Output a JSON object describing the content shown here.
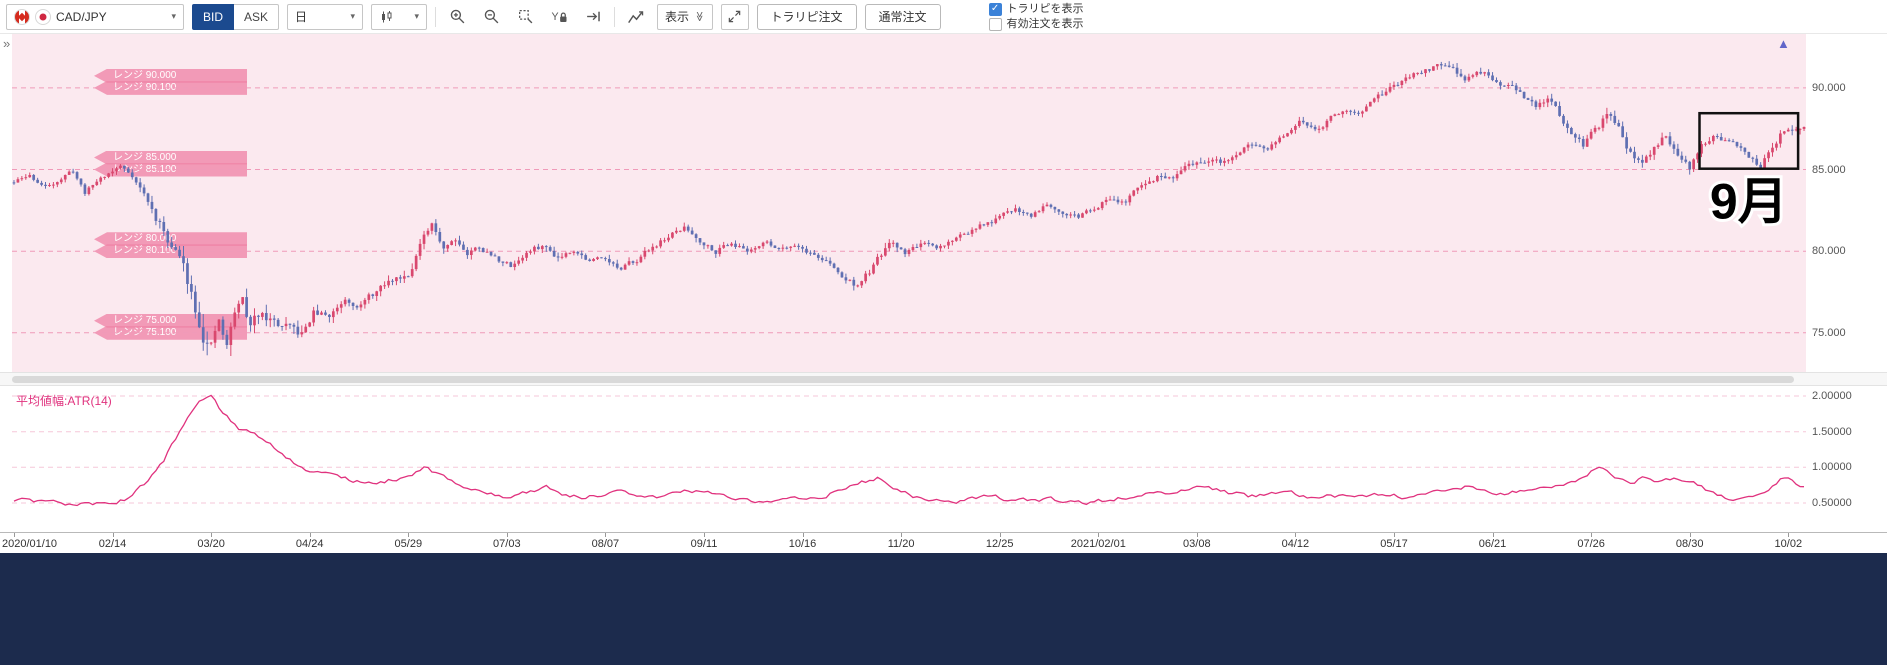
{
  "icons": {
    "chevron_down": "▾",
    "double_chevron": "≫",
    "check": "✓"
  },
  "toolbar": {
    "pair_label": "CAD/JPY",
    "bid_label": "BID",
    "ask_label": "ASK",
    "timeframe_label": "日",
    "display_label": "表示",
    "toraripi_order_label": "トラリピ注文",
    "normal_order_label": "通常注文",
    "show_toraripi_label": "トラリピを表示",
    "show_toraripi_checked": true,
    "show_active_orders_label": "有効注文を表示",
    "show_active_orders_checked": false
  },
  "chart": {
    "collapse_glyph": "»",
    "latest_marker_glyph": "▲",
    "price_axis": [
      {
        "label": "90.000",
        "value": 90
      },
      {
        "label": "85.000",
        "value": 85
      },
      {
        "label": "80.000",
        "value": 80
      },
      {
        "label": "75.000",
        "value": 75
      }
    ],
    "range_tags": [
      {
        "labels": [
          "レンジ 90.000",
          "レンジ 90.100"
        ],
        "price": 90
      },
      {
        "labels": [
          "レンジ 85.000",
          "レンジ 85.100"
        ],
        "price": 85
      },
      {
        "labels": [
          "レンジ 80.000",
          "レンジ 80.100"
        ],
        "price": 80
      },
      {
        "labels": [
          "レンジ 75.000",
          "レンジ 75.100"
        ],
        "price": 75
      }
    ],
    "annotation": {
      "label": "9月",
      "start_index": 428,
      "end_index": 452,
      "price_top": 88.45,
      "price_bottom": 85.05
    }
  },
  "indicator": {
    "label": "平均値幅:ATR(14)",
    "axis": [
      {
        "label": "2.00000",
        "value": 2.0
      },
      {
        "label": "1.50000",
        "value": 1.5
      },
      {
        "label": "1.00000",
        "value": 1.0
      },
      {
        "label": "0.50000",
        "value": 0.5
      }
    ]
  },
  "x_axis": {
    "labels": [
      {
        "text": "2020/01/10",
        "index": 0
      },
      {
        "text": "02/14",
        "index": 25
      },
      {
        "text": "03/20",
        "index": 50
      },
      {
        "text": "04/24",
        "index": 75
      },
      {
        "text": "05/29",
        "index": 100
      },
      {
        "text": "07/03",
        "index": 125
      },
      {
        "text": "08/07",
        "index": 150
      },
      {
        "text": "09/11",
        "index": 175
      },
      {
        "text": "10/16",
        "index": 200
      },
      {
        "text": "11/20",
        "index": 225
      },
      {
        "text": "12/25",
        "index": 250
      },
      {
        "text": "2021/02/01",
        "index": 275
      },
      {
        "text": "03/08",
        "index": 300
      },
      {
        "text": "04/12",
        "index": 325
      },
      {
        "text": "05/17",
        "index": 350
      },
      {
        "text": "06/21",
        "index": 375
      },
      {
        "text": "07/26",
        "index": 400
      },
      {
        "text": "08/30",
        "index": 425
      },
      {
        "text": "10/02",
        "index": 450
      }
    ]
  },
  "chart_data": {
    "type": "candlestick",
    "symbol": "CAD/JPY",
    "timeframe": "daily",
    "indicator": "ATR(14)",
    "num_candles": 455,
    "seed": 11,
    "price_view": [
      72.6,
      93.3
    ],
    "price_gridlines": [
      90,
      85,
      80,
      75
    ],
    "atr_gridlines": [
      2.0,
      1.5,
      1.0,
      0.5
    ],
    "price_anchors": [
      [
        0,
        84.2
      ],
      [
        4,
        84.6
      ],
      [
        8,
        83.9
      ],
      [
        12,
        84.5
      ],
      [
        15,
        84.9
      ],
      [
        18,
        83.6
      ],
      [
        22,
        84.5
      ],
      [
        27,
        85.2
      ],
      [
        30,
        84.7
      ],
      [
        33,
        83.5
      ],
      [
        36,
        82.0
      ],
      [
        39,
        80.8
      ],
      [
        42,
        79.6
      ],
      [
        45,
        77.6
      ],
      [
        48,
        75.2
      ],
      [
        50,
        74.0
      ],
      [
        52,
        75.6
      ],
      [
        54,
        74.0
      ],
      [
        56,
        76.3
      ],
      [
        58,
        77.0
      ],
      [
        60,
        75.3
      ],
      [
        63,
        76.5
      ],
      [
        66,
        75.7
      ],
      [
        70,
        75.1
      ],
      [
        73,
        74.8
      ],
      [
        76,
        76.2
      ],
      [
        80,
        76.0
      ],
      [
        84,
        77.2
      ],
      [
        88,
        76.8
      ],
      [
        92,
        77.5
      ],
      [
        96,
        78.2
      ],
      [
        100,
        78.7
      ],
      [
        103,
        80.4
      ],
      [
        106,
        81.4
      ],
      [
        109,
        80.3
      ],
      [
        112,
        80.9
      ],
      [
        115,
        79.9
      ],
      [
        118,
        80.3
      ],
      [
        122,
        79.6
      ],
      [
        126,
        79.1
      ],
      [
        130,
        79.9
      ],
      [
        134,
        80.3
      ],
      [
        138,
        79.7
      ],
      [
        142,
        80.2
      ],
      [
        146,
        79.4
      ],
      [
        150,
        79.7
      ],
      [
        154,
        78.8
      ],
      [
        158,
        79.5
      ],
      [
        162,
        80.3
      ],
      [
        166,
        80.9
      ],
      [
        170,
        81.4
      ],
      [
        174,
        80.7
      ],
      [
        178,
        80.1
      ],
      [
        182,
        80.6
      ],
      [
        186,
        80.0
      ],
      [
        190,
        80.6
      ],
      [
        194,
        80.2
      ],
      [
        198,
        80.5
      ],
      [
        202,
        79.9
      ],
      [
        206,
        79.4
      ],
      [
        210,
        78.4
      ],
      [
        214,
        77.9
      ],
      [
        218,
        79.0
      ],
      [
        222,
        80.4
      ],
      [
        226,
        79.9
      ],
      [
        230,
        80.5
      ],
      [
        234,
        80.0
      ],
      [
        238,
        80.7
      ],
      [
        242,
        81.2
      ],
      [
        246,
        81.6
      ],
      [
        250,
        82.0
      ],
      [
        254,
        82.6
      ],
      [
        258,
        82.2
      ],
      [
        262,
        83.0
      ],
      [
        266,
        82.5
      ],
      [
        270,
        82.1
      ],
      [
        274,
        82.7
      ],
      [
        278,
        83.3
      ],
      [
        282,
        83.1
      ],
      [
        286,
        83.9
      ],
      [
        290,
        84.6
      ],
      [
        294,
        84.3
      ],
      [
        298,
        85.1
      ],
      [
        302,
        85.6
      ],
      [
        306,
        85.3
      ],
      [
        310,
        86.0
      ],
      [
        314,
        86.5
      ],
      [
        318,
        86.2
      ],
      [
        322,
        87.0
      ],
      [
        326,
        87.8
      ],
      [
        330,
        87.5
      ],
      [
        334,
        88.2
      ],
      [
        338,
        88.8
      ],
      [
        342,
        88.5
      ],
      [
        346,
        89.3
      ],
      [
        350,
        90.1
      ],
      [
        354,
        90.6
      ],
      [
        358,
        91.1
      ],
      [
        362,
        91.5
      ],
      [
        365,
        91.0
      ],
      [
        368,
        90.6
      ],
      [
        371,
        91.1
      ],
      [
        374,
        90.7
      ],
      [
        377,
        89.9
      ],
      [
        380,
        90.3
      ],
      [
        383,
        89.5
      ],
      [
        386,
        88.7
      ],
      [
        389,
        89.2
      ],
      [
        392,
        88.3
      ],
      [
        395,
        87.3
      ],
      [
        398,
        86.5
      ],
      [
        401,
        87.3
      ],
      [
        404,
        88.2
      ],
      [
        407,
        87.5
      ],
      [
        410,
        86.0
      ],
      [
        413,
        85.3
      ],
      [
        416,
        86.4
      ],
      [
        419,
        87.2
      ],
      [
        422,
        86.0
      ],
      [
        425,
        85.0
      ],
      [
        428,
        86.6
      ],
      [
        431,
        87.0
      ],
      [
        434,
        86.8
      ],
      [
        437,
        86.4
      ],
      [
        440,
        85.7
      ],
      [
        443,
        85.2
      ],
      [
        446,
        86.4
      ],
      [
        449,
        87.4
      ],
      [
        452,
        87.6
      ],
      [
        454,
        87.5
      ]
    ],
    "atr_anchors": [
      [
        0,
        0.55
      ],
      [
        10,
        0.5
      ],
      [
        20,
        0.48
      ],
      [
        28,
        0.55
      ],
      [
        33,
        0.75
      ],
      [
        38,
        1.1
      ],
      [
        43,
        1.6
      ],
      [
        47,
        1.92
      ],
      [
        50,
        1.97
      ],
      [
        53,
        1.75
      ],
      [
        57,
        1.55
      ],
      [
        61,
        1.45
      ],
      [
        65,
        1.35
      ],
      [
        70,
        1.1
      ],
      [
        75,
        0.95
      ],
      [
        80,
        0.88
      ],
      [
        85,
        0.82
      ],
      [
        90,
        0.78
      ],
      [
        95,
        0.82
      ],
      [
        100,
        0.85
      ],
      [
        104,
        0.98
      ],
      [
        108,
        0.9
      ],
      [
        112,
        0.78
      ],
      [
        116,
        0.7
      ],
      [
        120,
        0.62
      ],
      [
        125,
        0.58
      ],
      [
        130,
        0.66
      ],
      [
        135,
        0.72
      ],
      [
        140,
        0.62
      ],
      [
        145,
        0.57
      ],
      [
        150,
        0.62
      ],
      [
        155,
        0.66
      ],
      [
        160,
        0.58
      ],
      [
        165,
        0.6
      ],
      [
        170,
        0.65
      ],
      [
        175,
        0.68
      ],
      [
        180,
        0.6
      ],
      [
        185,
        0.55
      ],
      [
        190,
        0.52
      ],
      [
        195,
        0.55
      ],
      [
        200,
        0.58
      ],
      [
        205,
        0.6
      ],
      [
        210,
        0.68
      ],
      [
        215,
        0.78
      ],
      [
        219,
        0.86
      ],
      [
        223,
        0.72
      ],
      [
        228,
        0.6
      ],
      [
        233,
        0.55
      ],
      [
        238,
        0.52
      ],
      [
        243,
        0.55
      ],
      [
        248,
        0.58
      ],
      [
        253,
        0.55
      ],
      [
        258,
        0.52
      ],
      [
        263,
        0.55
      ],
      [
        268,
        0.52
      ],
      [
        273,
        0.5
      ],
      [
        278,
        0.55
      ],
      [
        283,
        0.6
      ],
      [
        288,
        0.65
      ],
      [
        293,
        0.62
      ],
      [
        298,
        0.68
      ],
      [
        303,
        0.72
      ],
      [
        308,
        0.65
      ],
      [
        313,
        0.6
      ],
      [
        318,
        0.62
      ],
      [
        323,
        0.65
      ],
      [
        328,
        0.6
      ],
      [
        333,
        0.62
      ],
      [
        338,
        0.58
      ],
      [
        343,
        0.6
      ],
      [
        348,
        0.62
      ],
      [
        353,
        0.58
      ],
      [
        358,
        0.62
      ],
      [
        363,
        0.68
      ],
      [
        368,
        0.72
      ],
      [
        373,
        0.65
      ],
      [
        378,
        0.62
      ],
      [
        383,
        0.68
      ],
      [
        388,
        0.72
      ],
      [
        393,
        0.78
      ],
      [
        398,
        0.85
      ],
      [
        402,
        1.02
      ],
      [
        406,
        0.88
      ],
      [
        410,
        0.8
      ],
      [
        414,
        0.85
      ],
      [
        418,
        0.8
      ],
      [
        422,
        0.85
      ],
      [
        426,
        0.78
      ],
      [
        430,
        0.65
      ],
      [
        434,
        0.58
      ],
      [
        438,
        0.55
      ],
      [
        442,
        0.58
      ],
      [
        446,
        0.75
      ],
      [
        449,
        0.87
      ],
      [
        452,
        0.78
      ],
      [
        454,
        0.72
      ]
    ]
  },
  "colors": {
    "up_candle": "#d9486e",
    "down_candle": "#5f6fb2",
    "atr_line": "#e0327e",
    "chart_bg": "#fbe9ef",
    "grid_pink": "#f09ab9",
    "grid_pink_light": "#f5c7d8",
    "range_tag": "rgba(240,132,166,0.78)",
    "bid_active": "#1b4a8f",
    "checkbox_blue": "#3b82d8",
    "bottom_panel": "#1c2b4d",
    "marker_blue": "#6266c9"
  }
}
